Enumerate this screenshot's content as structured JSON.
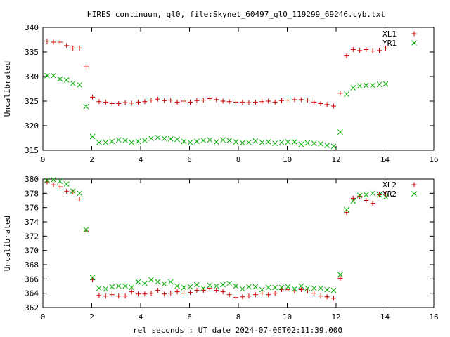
{
  "figure": {
    "title": "HIRES continuum, gl0, file:Skynet_60497_gl0_119299_69246.cyb.txt",
    "xlabel": "rel seconds : UT date 2024-07-06T02:11:39.000"
  },
  "chart_data": [
    {
      "type": "scatter",
      "ylabel": "Uncalibrated",
      "xlim": [
        0,
        16
      ],
      "ylim": [
        315,
        340
      ],
      "xticks": [
        "0",
        "2",
        "4",
        "6",
        "8",
        "10",
        "12",
        "14",
        "16"
      ],
      "yticks": [
        "315",
        "320",
        "325",
        "330",
        "335",
        "340"
      ],
      "xtick_values": [
        0,
        2,
        4,
        6,
        8,
        10,
        12,
        14,
        16
      ],
      "ytick_values": [
        315,
        320,
        325,
        330,
        335,
        340
      ],
      "legend": "top-right",
      "series": [
        {
          "name": "XL1",
          "marker": "plus",
          "color": "#cc0000",
          "x": [
            0.17,
            0.43,
            0.7,
            0.97,
            1.23,
            1.5,
            1.77,
            2.03,
            2.3,
            2.57,
            2.83,
            3.1,
            3.37,
            3.63,
            3.9,
            4.17,
            4.43,
            4.7,
            4.97,
            5.23,
            5.5,
            5.77,
            6.03,
            6.3,
            6.57,
            6.83,
            7.1,
            7.37,
            7.63,
            7.9,
            8.17,
            8.43,
            8.7,
            8.97,
            9.23,
            9.5,
            9.77,
            10.03,
            10.3,
            10.57,
            10.83,
            11.1,
            11.37,
            11.63,
            11.9,
            12.17,
            12.43,
            12.7,
            12.97,
            13.23,
            13.5,
            13.77,
            14.03
          ],
          "y": [
            337.2,
            337.0,
            337.0,
            336.3,
            335.8,
            335.8,
            332.0,
            325.8,
            324.9,
            324.8,
            324.5,
            324.5,
            324.7,
            324.6,
            324.8,
            324.9,
            325.2,
            325.4,
            325.1,
            325.2,
            324.8,
            325.0,
            324.8,
            325.1,
            325.2,
            325.5,
            325.3,
            325.0,
            324.9,
            324.8,
            324.8,
            324.7,
            324.8,
            324.9,
            325.0,
            324.8,
            325.1,
            325.2,
            325.3,
            325.3,
            325.2,
            324.8,
            324.5,
            324.3,
            324.0,
            326.6,
            334.2,
            335.5,
            335.3,
            335.5,
            335.2,
            335.3,
            335.8
          ]
        },
        {
          "name": "YR1",
          "marker": "cross",
          "color": "#00aa00",
          "x": [
            0.17,
            0.43,
            0.7,
            0.97,
            1.23,
            1.5,
            1.77,
            2.03,
            2.3,
            2.57,
            2.83,
            3.1,
            3.37,
            3.63,
            3.9,
            4.17,
            4.43,
            4.7,
            4.97,
            5.23,
            5.5,
            5.77,
            6.03,
            6.3,
            6.57,
            6.83,
            7.1,
            7.37,
            7.63,
            7.9,
            8.17,
            8.43,
            8.7,
            8.97,
            9.23,
            9.5,
            9.77,
            10.03,
            10.3,
            10.57,
            10.83,
            11.1,
            11.37,
            11.63,
            11.9,
            12.17,
            12.43,
            12.7,
            12.97,
            13.23,
            13.5,
            13.77,
            14.03
          ],
          "y": [
            330.2,
            330.2,
            329.5,
            329.3,
            328.6,
            328.3,
            323.9,
            317.8,
            316.6,
            316.6,
            316.8,
            317.1,
            317.0,
            316.6,
            316.8,
            317.0,
            317.4,
            317.6,
            317.4,
            317.3,
            317.2,
            316.8,
            316.6,
            316.8,
            317.0,
            317.1,
            316.7,
            317.1,
            317.0,
            316.7,
            316.5,
            316.6,
            316.9,
            316.6,
            316.7,
            316.4,
            316.6,
            316.7,
            316.7,
            316.2,
            316.5,
            316.4,
            316.3,
            316.0,
            315.8,
            318.7,
            326.4,
            327.7,
            328.1,
            328.2,
            328.2,
            328.4,
            328.5
          ]
        }
      ]
    },
    {
      "type": "scatter",
      "ylabel": "Uncalibrated",
      "xlim": [
        0,
        16
      ],
      "ylim": [
        362,
        380
      ],
      "xticks": [
        "0",
        "2",
        "4",
        "6",
        "8",
        "10",
        "12",
        "14",
        "16"
      ],
      "yticks": [
        "362",
        "364",
        "366",
        "368",
        "370",
        "372",
        "374",
        "376",
        "378",
        "380"
      ],
      "xtick_values": [
        0,
        2,
        4,
        6,
        8,
        10,
        12,
        14,
        16
      ],
      "ytick_values": [
        362,
        364,
        366,
        368,
        370,
        372,
        374,
        376,
        378,
        380
      ],
      "legend": "top-right",
      "series": [
        {
          "name": "XL2",
          "marker": "plus",
          "color": "#cc0000",
          "x": [
            0.17,
            0.43,
            0.7,
            0.97,
            1.23,
            1.5,
            1.77,
            2.03,
            2.3,
            2.57,
            2.83,
            3.1,
            3.37,
            3.63,
            3.9,
            4.17,
            4.43,
            4.7,
            4.97,
            5.23,
            5.5,
            5.77,
            6.03,
            6.3,
            6.57,
            6.83,
            7.1,
            7.37,
            7.63,
            7.9,
            8.17,
            8.43,
            8.7,
            8.97,
            9.23,
            9.5,
            9.77,
            10.03,
            10.3,
            10.57,
            10.83,
            11.1,
            11.37,
            11.63,
            11.9,
            12.17,
            12.43,
            12.7,
            12.97,
            13.23,
            13.5,
            13.77,
            14.03
          ],
          "y": [
            379.6,
            379.2,
            378.9,
            378.3,
            378.2,
            377.2,
            372.7,
            365.9,
            363.7,
            363.6,
            363.8,
            363.6,
            363.6,
            364.2,
            363.9,
            363.9,
            364.0,
            364.4,
            363.9,
            364.0,
            364.2,
            364.0,
            364.1,
            364.4,
            364.4,
            364.7,
            364.4,
            364.2,
            363.8,
            363.4,
            363.5,
            363.6,
            363.8,
            364.0,
            363.8,
            364.0,
            364.5,
            364.5,
            364.3,
            364.5,
            364.3,
            364.0,
            363.6,
            363.5,
            363.3,
            366.1,
            375.3,
            377.3,
            377.6,
            377.0,
            376.6,
            377.8,
            377.9
          ]
        },
        {
          "name": "YR2",
          "marker": "cross",
          "color": "#00aa00",
          "x": [
            0.17,
            0.43,
            0.7,
            0.97,
            1.23,
            1.5,
            1.77,
            2.03,
            2.3,
            2.57,
            2.83,
            3.1,
            3.37,
            3.63,
            3.9,
            4.17,
            4.43,
            4.7,
            4.97,
            5.23,
            5.5,
            5.77,
            6.03,
            6.3,
            6.57,
            6.83,
            7.1,
            7.37,
            7.63,
            7.9,
            8.17,
            8.43,
            8.7,
            8.97,
            9.23,
            9.5,
            9.77,
            10.03,
            10.3,
            10.57,
            10.83,
            11.1,
            11.37,
            11.63,
            11.9,
            12.17,
            12.43,
            12.7,
            12.97,
            13.23,
            13.5,
            13.77,
            14.03
          ],
          "y": [
            379.8,
            379.9,
            379.7,
            379.3,
            378.3,
            378.0,
            372.9,
            366.2,
            364.7,
            364.6,
            364.9,
            365.0,
            365.0,
            364.8,
            365.6,
            365.4,
            365.9,
            365.6,
            365.3,
            365.6,
            365.0,
            364.8,
            364.9,
            365.2,
            364.7,
            365.1,
            365.0,
            365.2,
            365.4,
            365.0,
            364.6,
            364.9,
            364.9,
            364.5,
            364.8,
            364.8,
            364.8,
            364.9,
            364.6,
            365.0,
            364.7,
            364.7,
            364.7,
            364.5,
            364.4,
            366.6,
            375.7,
            376.9,
            377.7,
            377.8,
            378.0,
            377.8,
            377.5
          ]
        }
      ]
    }
  ]
}
